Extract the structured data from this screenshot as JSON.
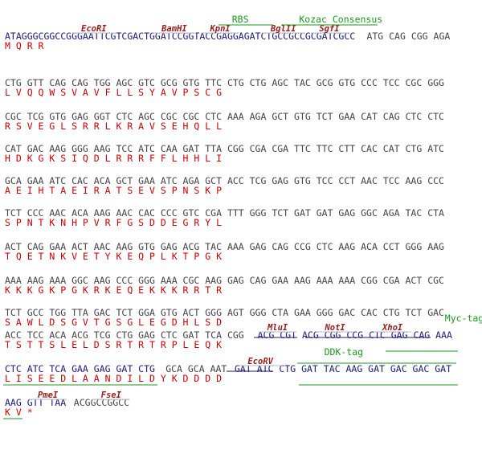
{
  "colors": {
    "dna_utr": "#1a1a80",
    "dna_orf": "#444444",
    "aa": "#cc0000",
    "enzyme": "#9b1a1a",
    "feature": "#1a9a1a",
    "rule": "#bbbbbb"
  },
  "lines": [
    {
      "dna": [
        {
          "t": "ATAGGGCGGCCGGGAATTCGTCGACTGGATCCGGTACCGAGGAGATCTGCCGCCGCGATCGCC",
          "k": "utr"
        },
        {
          "t": " ATG CAG CGG AGA",
          "k": "orf"
        }
      ],
      "aa": "                                                                 M   Q   R   R",
      "enzymes": [
        {
          "name": "EcoRI",
          "col": 15.5
        },
        {
          "name": "BamHI",
          "col": 29.5
        },
        {
          "name": "KpnI",
          "col": 37.5
        },
        {
          "name": "BglII",
          "col": 48.5
        },
        {
          "name": "SgfI",
          "col": 56.5
        }
      ],
      "features": [
        {
          "name": "RBS",
          "col": 41
        },
        {
          "name": "Kozac Consensus",
          "col": 58.5
        }
      ]
    },
    {
      "dna": [
        {
          "t": "CTG GTT CAG CAG TGG AGC GTC GCG GTG TTC CTG CTG AGC TAC GCG GTG CCC TCC CGC GGG",
          "k": "orf"
        }
      ],
      "aa": " L   V   Q   Q   W   S   V   A   V   F   L   L   S   Y   A   V   P   S   C   G"
    },
    {
      "dna": [
        {
          "t": "CGC TCG GTG GAG GGT CTC AGC CGC CGC CTC AAA AGA GCT GTG TCT GAA CAT CAG CTC CTC",
          "k": "orf"
        }
      ],
      "aa": " R   S   V   E   G   L   S   R   R   L   K   R   A   V   S   E   H   Q   L   L"
    },
    {
      "dna": [
        {
          "t": "CAT GAC AAG GGG AAG TCC ATC CAA GAT TTA CGG CGA CGA TTC TTC CTT CAC CAT CTG ATC",
          "k": "orf"
        }
      ],
      "aa": " H   D   K   G   K   S   I   Q   D   L   R   R   R   F   F   L   H   H   L   I"
    },
    {
      "dna": [
        {
          "t": "GCA GAA ATC CAC ACA GCT GAA ATC AGA GCT ACC TCG GAG GTG TCC CCT AAC TCC AAG CCC",
          "k": "orf"
        }
      ],
      "aa": " A   E   I   H   T   A   E   I   R   A   T   S   E   V   S   P   N   S   K   P"
    },
    {
      "dna": [
        {
          "t": "TCT CCC AAC ACA AAG AAC CAC CCC GTC CGA TTT GGG TCT GAT GAT GAG GGC AGA TAC CTA",
          "k": "orf"
        }
      ],
      "aa": " S   P   N   T   K   N   H   P   V   R   F   G   S   D   D   E   G   R   Y   L"
    },
    {
      "dna": [
        {
          "t": "ACT CAG GAA ACT AAC AAG GTG GAG ACG TAC AAA GAG CAG CCG CTC AAG ACA CCT GGG AAG",
          "k": "orf"
        }
      ],
      "aa": " T   Q   E   T   N   K   V   E   T   Y   K   E   Q   P   L   K   T   P   G   K"
    },
    {
      "dna": [
        {
          "t": "AAA AAG AAA GGC AAG CCC GGG AAA CGC AAG GAG CAG GAA AAG AAA AAA CGG CGA ACT CGC",
          "k": "orf"
        }
      ],
      "aa": " K   K   K   G   K   P   G   K   R   K   E   Q   E   K   K   K   R   R   T   R"
    },
    {
      "dna": [
        {
          "t": "TCT GCC TGG TTA GAC TCT GGA GTG ACT GGG AGT GGG CTA GAA GGG GAC CAC CTG TCT GAC",
          "k": "orf"
        }
      ],
      "aa": " S   A   W   L   D   S   G   V   T   G   S   G   L   E   G   D   H   L   S   D"
    },
    {
      "dna": [
        {
          "t": "ACC TCC ACA ACG TCG CTG GAG CTC GAT TCA CGG ",
          "k": "orf"
        },
        {
          "t": "ACG CGT ACG CGG CCG CTC GAG CAG AAA",
          "k": "utr"
        }
      ],
      "aa": " T   S   T   T   S   L   E   L   D   S   R   T   R   T   R   P   L   E   Q   K",
      "enzymes": [
        {
          "name": "MluI",
          "col": 47.5
        },
        {
          "name": "NotI",
          "col": 57.5
        },
        {
          "name": "XhoI",
          "col": 67.5
        }
      ],
      "features": [
        {
          "name": "Myc-tag",
          "col": 80
        }
      ]
    },
    {
      "dna": [
        {
          "t": "CTC ATC TCA GAA GAG GAT CTG ",
          "k": "utr"
        },
        {
          "t": "GCA GCA AAT ",
          "k": "orf"
        },
        {
          "t": "GAT ATC CTG GAT TAC AAG GAT GAC GAC GAT",
          "k": "utr"
        }
      ],
      "aa": " L   I   S   E   E   D   L   A   A   N   D   I   L   D   Y   K   D   D   D   D",
      "enzymes": [
        {
          "name": "EcoRV",
          "col": 44.5
        }
      ],
      "features": [
        {
          "name": "DDK-tag",
          "col": 59
        }
      ]
    },
    {
      "dna": [
        {
          "t": "AAG GTT TAA ",
          "k": "utr"
        },
        {
          "t": "ACGGCCGGCC",
          "k": "orf"
        }
      ],
      "aa": " K   V   *",
      "enzymes": [
        {
          "name": "PmeI",
          "col": 7.5
        },
        {
          "name": "FseI",
          "col": 18.5
        }
      ]
    }
  ]
}
